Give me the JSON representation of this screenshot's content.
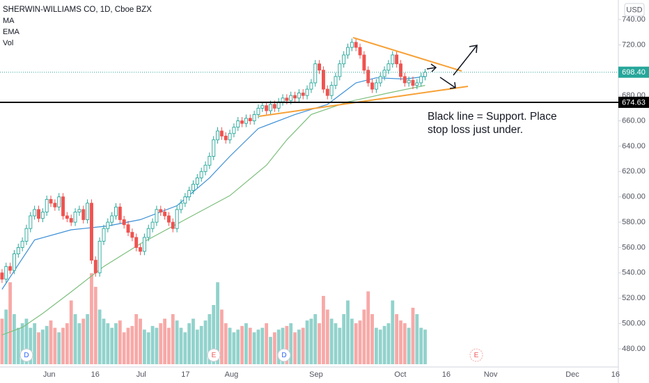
{
  "chart_data": {
    "type": "candlestick",
    "title": "SHERWIN-WILLIAMS CO, 1D, Cboe BZX",
    "legend": [
      "MA",
      "EMA",
      "Vol"
    ],
    "currency": "USD",
    "up_color": "#26a69a",
    "down_color": "#ef5350",
    "ylim": [
      465.7,
      755.4
    ],
    "yticks": [
      {
        "value": 480,
        "label": "480.00"
      },
      {
        "value": 500,
        "label": "500.00"
      },
      {
        "value": 520,
        "label": "520.00"
      },
      {
        "value": 540,
        "label": "540.00"
      },
      {
        "value": 560,
        "label": "560.00"
      },
      {
        "value": 580,
        "label": "580.00"
      },
      {
        "value": 600,
        "label": "600.00"
      },
      {
        "value": 620,
        "label": "620.00"
      },
      {
        "value": 640,
        "label": "640.00"
      },
      {
        "value": 660,
        "label": "660.00"
      },
      {
        "value": 680,
        "label": "680.00"
      },
      {
        "value": 720,
        "label": "720.00"
      },
      {
        "value": 740,
        "label": "740.00"
      }
    ],
    "xlim": [
      -0.5,
      151.5
    ],
    "xticks": [
      {
        "value": 11.6,
        "label": "Jun"
      },
      {
        "value": 22.9,
        "label": "16"
      },
      {
        "value": 34.2,
        "label": "Jul"
      },
      {
        "value": 45.1,
        "label": "17"
      },
      {
        "value": 56.4,
        "label": "Aug"
      },
      {
        "value": 77.2,
        "label": "Sep"
      },
      {
        "value": 97.9,
        "label": "Oct"
      },
      {
        "value": 109.2,
        "label": "16"
      },
      {
        "value": 120.1,
        "label": "Nov"
      },
      {
        "value": 140.2,
        "label": "Dec"
      },
      {
        "value": 150.8,
        "label": "16"
      }
    ],
    "candles": [
      [
        540,
        543,
        532,
        535
      ],
      [
        535,
        548,
        532,
        545
      ],
      [
        545,
        548,
        539,
        542
      ],
      [
        542,
        558,
        539,
        555
      ],
      [
        555,
        563,
        552,
        560
      ],
      [
        560,
        568,
        557,
        565
      ],
      [
        565,
        578,
        562,
        575
      ],
      [
        575,
        588,
        572,
        585
      ],
      [
        585,
        593,
        582,
        590
      ],
      [
        590,
        593,
        580,
        583
      ],
      [
        583,
        591,
        580,
        588
      ],
      [
        588,
        601,
        585,
        598
      ],
      [
        598,
        601,
        592,
        595
      ],
      [
        595,
        598,
        589,
        592
      ],
      [
        592,
        603,
        589,
        600
      ],
      [
        600,
        603,
        582,
        585
      ],
      [
        585,
        588,
        580,
        583
      ],
      [
        583,
        586,
        577,
        580
      ],
      [
        580,
        591,
        577,
        588
      ],
      [
        588,
        593,
        585,
        590
      ],
      [
        590,
        593,
        579,
        582
      ],
      [
        582,
        598,
        579,
        595
      ],
      [
        595,
        598,
        547,
        550
      ],
      [
        550,
        553,
        537,
        540
      ],
      [
        540,
        568,
        537,
        565
      ],
      [
        565,
        578,
        562,
        575
      ],
      [
        575,
        583,
        572,
        580
      ],
      [
        580,
        588,
        577,
        585
      ],
      [
        585,
        595,
        582,
        592
      ],
      [
        592,
        595,
        579,
        582
      ],
      [
        582,
        585,
        575,
        578
      ],
      [
        578,
        581,
        569,
        572
      ],
      [
        572,
        575,
        565,
        568
      ],
      [
        568,
        571,
        557,
        560
      ],
      [
        560,
        563,
        554,
        557
      ],
      [
        557,
        571,
        554,
        568
      ],
      [
        568,
        578,
        565,
        575
      ],
      [
        575,
        583,
        572,
        580
      ],
      [
        580,
        593,
        577,
        590
      ],
      [
        590,
        593,
        585,
        588
      ],
      [
        588,
        591,
        582,
        585
      ],
      [
        585,
        588,
        577,
        580
      ],
      [
        580,
        583,
        572,
        575
      ],
      [
        575,
        593,
        572,
        590
      ],
      [
        590,
        598,
        587,
        595
      ],
      [
        595,
        603,
        592,
        600
      ],
      [
        600,
        608,
        597,
        605
      ],
      [
        605,
        613,
        602,
        610
      ],
      [
        610,
        618,
        607,
        615
      ],
      [
        615,
        623,
        612,
        620
      ],
      [
        620,
        628,
        617,
        625
      ],
      [
        625,
        635,
        622,
        632
      ],
      [
        632,
        648,
        629,
        645
      ],
      [
        645,
        655,
        642,
        652
      ],
      [
        652,
        655,
        645,
        648
      ],
      [
        648,
        651,
        642,
        645
      ],
      [
        645,
        653,
        642,
        650
      ],
      [
        650,
        658,
        647,
        655
      ],
      [
        655,
        663,
        652,
        660
      ],
      [
        660,
        663,
        655,
        658
      ],
      [
        658,
        665,
        655,
        662
      ],
      [
        662,
        665,
        657,
        660
      ],
      [
        660,
        668,
        657,
        665
      ],
      [
        665,
        673,
        662,
        670
      ],
      [
        670,
        675,
        667,
        672
      ],
      [
        672,
        675,
        665,
        668
      ],
      [
        668,
        676,
        665,
        673
      ],
      [
        673,
        676,
        667,
        670
      ],
      [
        670,
        678,
        667,
        675
      ],
      [
        675,
        681,
        672,
        678
      ],
      [
        678,
        681,
        673,
        676
      ],
      [
        676,
        683,
        673,
        680
      ],
      [
        680,
        683,
        675,
        678
      ],
      [
        678,
        685,
        675,
        682
      ],
      [
        682,
        685,
        677,
        680
      ],
      [
        680,
        688,
        677,
        685
      ],
      [
        685,
        693,
        682,
        690
      ],
      [
        690,
        708,
        687,
        705
      ],
      [
        705,
        708,
        697,
        700
      ],
      [
        700,
        703,
        682,
        685
      ],
      [
        685,
        688,
        677,
        680
      ],
      [
        680,
        691,
        677,
        688
      ],
      [
        688,
        698,
        685,
        695
      ],
      [
        695,
        708,
        692,
        705
      ],
      [
        705,
        715,
        702,
        712
      ],
      [
        712,
        721,
        709,
        718
      ],
      [
        718,
        725,
        715,
        722
      ],
      [
        722,
        725,
        715,
        718
      ],
      [
        718,
        721,
        709,
        712
      ],
      [
        712,
        715,
        697,
        700
      ],
      [
        700,
        703,
        687,
        690
      ],
      [
        690,
        693,
        682,
        685
      ],
      [
        685,
        693,
        682,
        690
      ],
      [
        690,
        698,
        687,
        695
      ],
      [
        695,
        703,
        692,
        700
      ],
      [
        700,
        708,
        697,
        705
      ],
      [
        705,
        715,
        702,
        712
      ],
      [
        712,
        715,
        702,
        705
      ],
      [
        705,
        708,
        692,
        695
      ],
      [
        695,
        698,
        687,
        690
      ],
      [
        690,
        695,
        687,
        692
      ],
      [
        692,
        695,
        685,
        688
      ],
      [
        688,
        693,
        685,
        690
      ],
      [
        690,
        698,
        687,
        695
      ],
      [
        695,
        701,
        692,
        698.4
      ]
    ],
    "volume_ylim": [
      0,
      400
    ],
    "volume": [
      50,
      60,
      90,
      55,
      40,
      45,
      50,
      40,
      45,
      35,
      38,
      42,
      48,
      40,
      35,
      40,
      45,
      70,
      55,
      45,
      50,
      55,
      100,
      85,
      60,
      50,
      45,
      40,
      45,
      48,
      35,
      40,
      42,
      55,
      50,
      38,
      35,
      42,
      40,
      45,
      50,
      40,
      55,
      48,
      40,
      35,
      45,
      50,
      38,
      42,
      48,
      55,
      65,
      90,
      60,
      45,
      40,
      35,
      38,
      42,
      45,
      40,
      35,
      38,
      40,
      45,
      30,
      35,
      38,
      40,
      42,
      45,
      35,
      38,
      40,
      48,
      50,
      55,
      45,
      75,
      60,
      50,
      45,
      40,
      55,
      70,
      50,
      45,
      48,
      60,
      80,
      55,
      40,
      38,
      42,
      45,
      70,
      55,
      48,
      45,
      40,
      62,
      55,
      40,
      38
    ],
    "ma": {
      "color": "#3d8fd6",
      "x": [
        0,
        8,
        17,
        26,
        34,
        43,
        51,
        56,
        63,
        72,
        80,
        87,
        92,
        99,
        104
      ],
      "values": [
        527,
        566,
        574,
        577,
        582,
        593,
        615,
        632,
        654,
        665,
        673,
        690,
        694,
        693,
        695
      ]
    },
    "ema": {
      "color": "#7cbf7c",
      "x": [
        0,
        5,
        10,
        17,
        25,
        34,
        45,
        56,
        65,
        70,
        76,
        85,
        95,
        104
      ],
      "values": [
        491,
        497,
        508,
        525,
        545,
        563,
        582,
        601,
        625,
        645,
        665,
        675,
        682,
        688
      ]
    },
    "last_price": {
      "value": 698.4,
      "label": "698.40"
    },
    "support": 674.63,
    "annotation": [
      "Black line = Support. Place",
      "stop loss just under."
    ],
    "events": [
      "D",
      "E",
      "D",
      "E"
    ]
  }
}
